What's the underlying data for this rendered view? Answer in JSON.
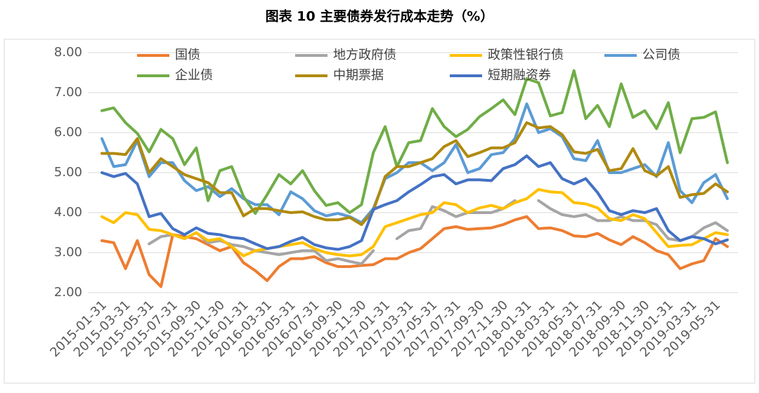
{
  "chart_data": {
    "type": "line",
    "title": "图表 10 主要债券发行成本走势（%）",
    "categories": [
      "2015-01-31",
      null,
      "2015-03-31",
      null,
      "2015-05-31",
      null,
      "2015-07-31",
      null,
      "2015-09-30",
      null,
      "2015-11-30",
      null,
      "2016-01-31",
      null,
      "2016-03-31",
      null,
      "2016-05-31",
      null,
      "2016-07-31",
      null,
      "2016-09-30",
      null,
      "2016-11-30",
      null,
      "2017-01-31",
      null,
      "2017-03-31",
      null,
      "2017-05-31",
      null,
      "2017-07-31",
      null,
      "2017-09-30",
      null,
      "2017-11-30",
      null,
      "2018-01-31",
      null,
      "2018-03-31",
      null,
      "2018-05-31",
      null,
      "2018-07-31",
      null,
      "2018-09-30",
      null,
      "2018-11-30",
      null,
      "2019-01-31",
      null,
      "2019-03-31",
      null,
      "2019-05-31",
      null
    ],
    "ylim": [
      2,
      8
    ],
    "yticks": [
      {
        "value": 2,
        "label": "2.00"
      },
      {
        "value": 3,
        "label": "3.00"
      },
      {
        "value": 4,
        "label": "4.00"
      },
      {
        "value": 5,
        "label": "5.00"
      },
      {
        "value": 6,
        "label": "6.00"
      },
      {
        "value": 7,
        "label": "7.00"
      },
      {
        "value": 8,
        "label": "8.00"
      }
    ],
    "grid": true,
    "legend": "top",
    "series": [
      {
        "name": "国债",
        "color": "#ed7d31",
        "values": [
          3.3,
          3.25,
          2.6,
          3.3,
          2.45,
          2.15,
          3.45,
          3.4,
          3.35,
          3.2,
          3.05,
          3.15,
          2.75,
          2.55,
          2.3,
          2.65,
          2.85,
          2.85,
          2.9,
          2.75,
          2.65,
          2.65,
          2.68,
          2.7,
          2.85,
          2.85,
          3.0,
          3.1,
          3.35,
          3.6,
          3.65,
          3.58,
          3.6,
          3.62,
          3.7,
          3.82,
          3.9,
          3.6,
          3.62,
          3.55,
          3.42,
          3.4,
          3.48,
          3.32,
          3.2,
          3.4,
          3.25,
          3.05,
          2.95,
          2.6,
          2.72,
          2.8,
          3.35,
          3.15
        ]
      },
      {
        "name": "地方政府债",
        "color": "#a5a5a5",
        "values": [
          null,
          null,
          null,
          null,
          3.22,
          3.4,
          3.45,
          3.35,
          3.5,
          3.25,
          3.3,
          3.2,
          3.15,
          3.05,
          3.0,
          2.95,
          3.0,
          3.05,
          3.05,
          2.8,
          2.85,
          2.78,
          2.72,
          3.05,
          null,
          3.35,
          3.55,
          3.6,
          4.15,
          4.05,
          3.9,
          4.0,
          4.0,
          4.0,
          4.1,
          4.3,
          null,
          4.3,
          4.1,
          3.95,
          3.9,
          3.95,
          3.8,
          3.8,
          3.9,
          3.8,
          3.8,
          3.7,
          3.35,
          3.3,
          3.4,
          3.62,
          3.75,
          3.55
        ]
      },
      {
        "name": "政策性银行债",
        "color": "#ffc000",
        "values": [
          3.9,
          3.75,
          4.0,
          3.95,
          3.58,
          3.55,
          3.45,
          3.35,
          3.5,
          3.3,
          3.35,
          3.15,
          2.92,
          3.05,
          3.1,
          3.15,
          3.2,
          3.25,
          3.1,
          3.0,
          2.95,
          2.92,
          2.95,
          3.15,
          3.65,
          3.75,
          3.85,
          3.95,
          4.0,
          4.25,
          4.2,
          4.0,
          4.12,
          4.18,
          4.1,
          4.25,
          4.35,
          4.58,
          4.52,
          4.5,
          4.25,
          4.22,
          4.12,
          3.85,
          3.8,
          3.95,
          3.85,
          3.5,
          3.15,
          3.18,
          3.2,
          3.35,
          3.5,
          3.45
        ]
      },
      {
        "name": "公司债",
        "color": "#5b9bd5",
        "values": [
          5.85,
          5.15,
          5.2,
          5.8,
          4.9,
          5.25,
          5.25,
          4.8,
          4.55,
          4.65,
          4.4,
          4.6,
          4.35,
          4.2,
          4.2,
          3.95,
          4.52,
          4.35,
          4.05,
          3.92,
          3.98,
          3.9,
          3.75,
          4.1,
          4.85,
          5.0,
          5.25,
          5.25,
          5.05,
          5.25,
          5.7,
          5.0,
          5.1,
          5.45,
          5.5,
          5.85,
          6.72,
          6.0,
          6.1,
          5.9,
          5.35,
          5.3,
          5.8,
          5.0,
          5.0,
          5.1,
          5.2,
          4.9,
          5.75,
          4.55,
          4.25,
          4.75,
          4.95,
          4.35
        ]
      },
      {
        "name": "企业债",
        "color": "#70ad47",
        "values": [
          6.55,
          6.62,
          6.25,
          5.98,
          5.52,
          6.08,
          5.85,
          5.2,
          5.62,
          4.3,
          5.05,
          5.15,
          4.4,
          3.98,
          4.45,
          4.95,
          4.72,
          5.05,
          4.55,
          4.18,
          4.25,
          4.0,
          4.2,
          5.5,
          6.15,
          5.15,
          5.75,
          5.8,
          6.6,
          6.15,
          5.9,
          6.08,
          6.4,
          6.6,
          6.82,
          6.45,
          7.35,
          7.25,
          6.42,
          6.5,
          7.55,
          6.35,
          6.68,
          6.15,
          7.22,
          6.38,
          6.55,
          6.1,
          6.75,
          5.5,
          6.35,
          6.38,
          6.52,
          5.25
        ]
      },
      {
        "name": "中期票据",
        "color": "#b08a0e",
        "values": [
          5.48,
          5.48,
          5.45,
          5.85,
          5.0,
          5.35,
          5.15,
          4.95,
          4.85,
          4.75,
          4.5,
          4.5,
          3.92,
          4.1,
          4.1,
          4.05,
          4.0,
          4.02,
          3.9,
          3.82,
          3.82,
          3.88,
          3.7,
          4.05,
          4.9,
          5.15,
          5.15,
          5.25,
          5.35,
          5.65,
          5.8,
          5.4,
          5.5,
          5.62,
          5.62,
          5.75,
          6.25,
          6.12,
          6.15,
          5.95,
          5.52,
          5.48,
          5.58,
          5.05,
          5.1,
          5.6,
          5.05,
          4.92,
          5.15,
          4.38,
          4.45,
          4.48,
          4.72,
          4.52
        ]
      },
      {
        "name": "短期融资券",
        "color": "#4472c4",
        "values": [
          5.0,
          4.9,
          4.98,
          4.72,
          3.9,
          3.98,
          3.6,
          3.45,
          3.62,
          3.48,
          3.45,
          3.38,
          3.35,
          3.22,
          3.1,
          3.15,
          3.28,
          3.38,
          3.2,
          3.12,
          3.08,
          3.15,
          3.3,
          4.08,
          4.2,
          4.3,
          4.52,
          4.7,
          4.9,
          4.95,
          4.72,
          4.82,
          4.82,
          4.8,
          5.1,
          5.2,
          5.42,
          5.15,
          5.25,
          4.85,
          4.72,
          4.85,
          4.5,
          4.05,
          3.95,
          4.05,
          4.0,
          4.1,
          3.55,
          3.3,
          3.4,
          3.35,
          3.22,
          3.32
        ]
      }
    ]
  }
}
